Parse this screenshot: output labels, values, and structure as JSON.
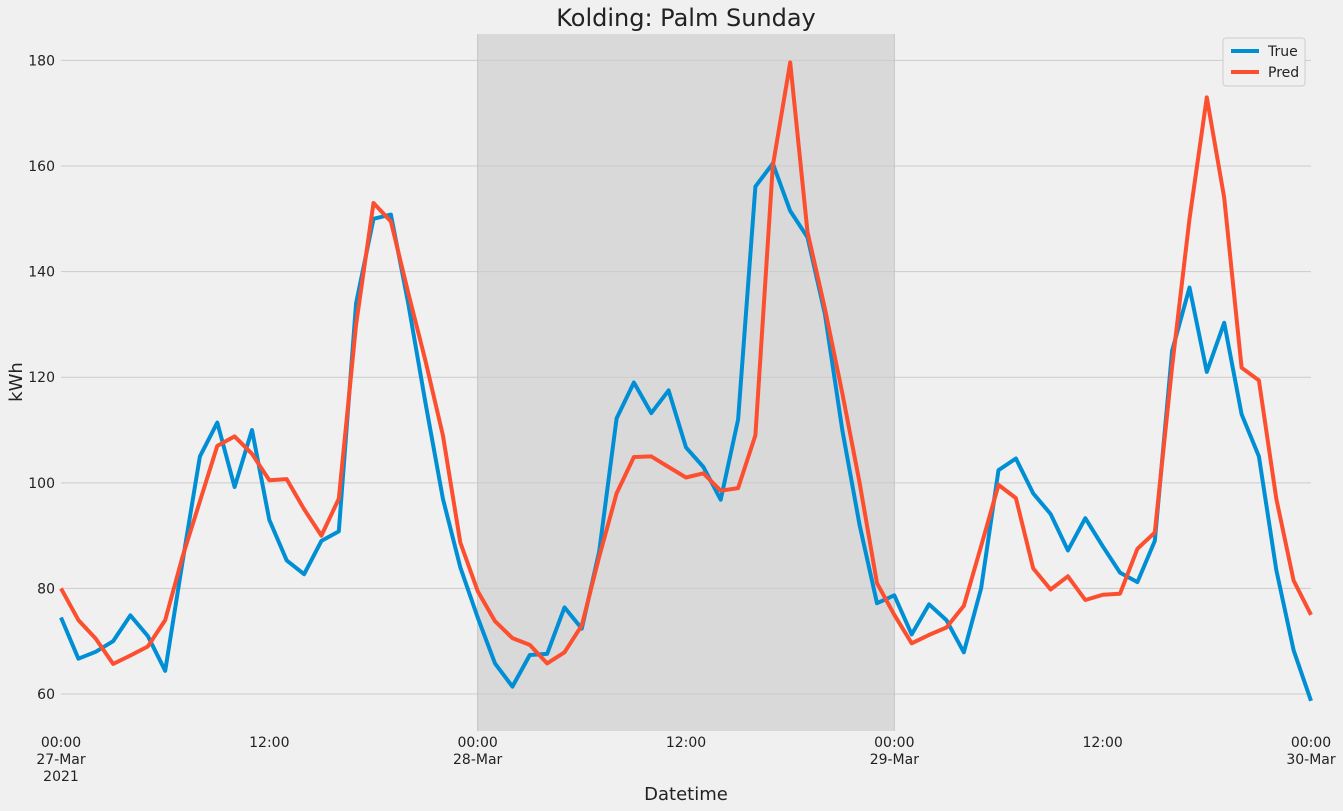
{
  "chart_data": {
    "type": "line",
    "title": "Kolding: Palm Sunday",
    "xlabel": "Datetime",
    "ylabel": "kWh",
    "x_start": "2021-03-27 00:00",
    "x_step_hours": 1,
    "xlim": [
      "2021-03-27 00:00",
      "2021-03-30 00:00"
    ],
    "ylim": [
      53,
      185
    ],
    "yticks": [
      60,
      80,
      100,
      120,
      140,
      160,
      180
    ],
    "xticks": [
      {
        "time": "2021-03-27 00:00",
        "lines": [
          "00:00",
          "27-Mar",
          "2021"
        ]
      },
      {
        "time": "2021-03-27 12:00",
        "lines": [
          "12:00"
        ]
      },
      {
        "time": "2021-03-28 00:00",
        "lines": [
          "00:00",
          "28-Mar"
        ]
      },
      {
        "time": "2021-03-28 12:00",
        "lines": [
          "12:00"
        ]
      },
      {
        "time": "2021-03-29 00:00",
        "lines": [
          "00:00",
          "29-Mar"
        ]
      },
      {
        "time": "2021-03-29 12:00",
        "lines": [
          "12:00"
        ]
      },
      {
        "time": "2021-03-30 00:00",
        "lines": [
          "00:00",
          "30-Mar"
        ]
      }
    ],
    "highlight": {
      "start": "2021-03-28 00:00",
      "end": "2021-03-29 00:00",
      "color": "#d9d9d9"
    },
    "grid": true,
    "legend_position": "top-right",
    "series": [
      {
        "name": "True",
        "color": "#008fd5",
        "values": [
          74.5,
          66.7,
          68.0,
          70.0,
          74.9,
          71.0,
          64.4,
          85.0,
          105.0,
          111.4,
          99.2,
          110.0,
          93.0,
          85.3,
          82.7,
          89.0,
          90.8,
          134.0,
          150.0,
          150.8,
          134.0,
          115.0,
          97.0,
          84.0,
          74.5,
          65.8,
          61.4,
          67.4,
          67.6,
          76.4,
          72.4,
          87.0,
          112.2,
          119.0,
          113.2,
          117.5,
          106.7,
          103.0,
          96.8,
          112.0,
          156.1,
          160.5,
          151.5,
          146.5,
          132.0,
          110.0,
          92.0,
          77.2,
          78.7,
          71.3,
          77.0,
          74.0,
          67.9,
          80.0,
          102.4,
          104.6,
          98.0,
          94.1,
          87.2,
          93.3,
          88.0,
          83.0,
          81.2,
          89.0,
          125.0,
          137.0,
          121.0,
          130.3,
          113.0,
          105.0,
          83.5,
          68.3,
          58.7
        ]
      },
      {
        "name": "Pred",
        "color": "#fc4f30",
        "values": [
          80.0,
          74.0,
          70.5,
          65.7,
          67.3,
          69.0,
          74.0,
          86.0,
          96.5,
          107.0,
          108.8,
          105.5,
          100.5,
          100.7,
          95.0,
          90.0,
          97.0,
          130.0,
          153.0,
          149.5,
          136.0,
          123.0,
          109.0,
          88.7,
          79.5,
          73.8,
          70.6,
          69.3,
          65.8,
          67.9,
          73.0,
          86.0,
          98.0,
          104.9,
          105.0,
          103.0,
          101.0,
          101.8,
          98.5,
          99.0,
          109.0,
          160.0,
          179.6,
          147.5,
          133.0,
          117.0,
          100.0,
          81.0,
          75.0,
          69.6,
          71.2,
          72.6,
          76.7,
          88.0,
          99.6,
          97.1,
          83.8,
          79.8,
          82.3,
          77.8,
          78.8,
          79.0,
          87.5,
          90.6,
          122.0,
          150.0,
          173.0,
          154.0,
          121.8,
          119.4,
          97.0,
          81.5,
          75.0
        ]
      }
    ]
  }
}
